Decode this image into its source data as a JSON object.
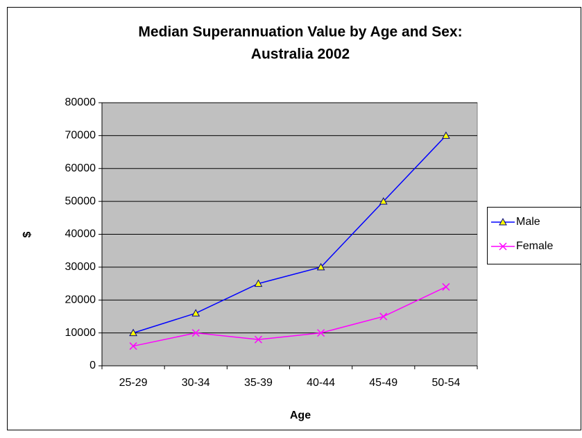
{
  "chart_data": {
    "type": "line",
    "title": [
      "Median Superannuation Value by Age and Sex:",
      "Australia 2002"
    ],
    "x_label": "Age",
    "y_label": "$",
    "categories": [
      "25-29",
      "30-34",
      "35-39",
      "40-44",
      "45-49",
      "50-54"
    ],
    "series": [
      {
        "name": "Male",
        "color": "#0000ff",
        "marker": "triangle",
        "marker_color": "#ffff00",
        "values": [
          10000,
          16000,
          25000,
          30000,
          50000,
          70000
        ]
      },
      {
        "name": "Female",
        "color": "#ff00ff",
        "marker": "x",
        "values": [
          6000,
          10000,
          8000,
          10000,
          15000,
          24000
        ]
      }
    ],
    "ylim": [
      0,
      80000
    ],
    "yticks": [
      0,
      10000,
      20000,
      30000,
      40000,
      50000,
      60000,
      70000,
      80000
    ],
    "grid": true,
    "legend": "right",
    "plot_background": "#c0c0c0"
  }
}
